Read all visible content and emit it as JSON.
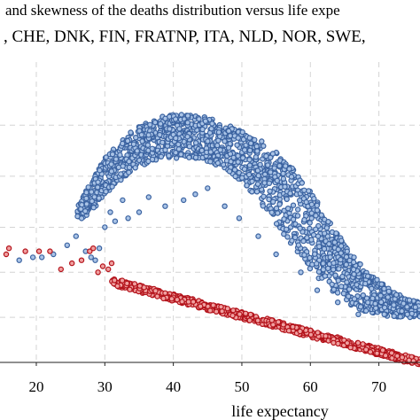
{
  "chart_data": {
    "type": "scatter",
    "title_lines": [
      "and skewness of the deaths distribution versus life expe",
      ", CHE, DNK, FIN, FRATNP, ITA, NLD, NOR, SWE,"
    ],
    "xlabel": "life expectancy",
    "ylabel": "",
    "xlim": [
      14.7,
      76
    ],
    "ylim": [
      0,
      1
    ],
    "x_ticks": [
      20,
      30,
      40,
      50,
      60,
      70
    ],
    "x_tick_labels": [
      "20",
      "30",
      "40",
      "50",
      "60",
      "70"
    ],
    "y_gridlines": [
      0.15,
      0.3,
      0.45,
      0.62,
      0.79
    ],
    "grid": true,
    "grid_style": "dashed",
    "series": [
      {
        "color": "#3a62a0",
        "stroke": "#3a62a0",
        "fill": "#a9c3e6",
        "envelope": [
          [
            26,
            0.47,
            0.52
          ],
          [
            28,
            0.5,
            0.6
          ],
          [
            30,
            0.56,
            0.68
          ],
          [
            32,
            0.6,
            0.73
          ],
          [
            34,
            0.64,
            0.77
          ],
          [
            36,
            0.66,
            0.8
          ],
          [
            38,
            0.68,
            0.82
          ],
          [
            40,
            0.68,
            0.83
          ],
          [
            42,
            0.68,
            0.83
          ],
          [
            44,
            0.68,
            0.82
          ],
          [
            46,
            0.66,
            0.81
          ],
          [
            48,
            0.64,
            0.79
          ],
          [
            50,
            0.6,
            0.77
          ],
          [
            52,
            0.55,
            0.75
          ],
          [
            54,
            0.49,
            0.72
          ],
          [
            56,
            0.43,
            0.68
          ],
          [
            58,
            0.37,
            0.63
          ],
          [
            60,
            0.31,
            0.57
          ],
          [
            62,
            0.26,
            0.5
          ],
          [
            64,
            0.22,
            0.43
          ],
          [
            66,
            0.19,
            0.36
          ],
          [
            68,
            0.17,
            0.31
          ],
          [
            70,
            0.16,
            0.27
          ],
          [
            72,
            0.15,
            0.24
          ],
          [
            74,
            0.15,
            0.21
          ],
          [
            76,
            0.15,
            0.2
          ]
        ],
        "outliers": [
          [
            17.5,
            0.34
          ],
          [
            19.5,
            0.35
          ],
          [
            20.8,
            0.35
          ],
          [
            22.5,
            0.36
          ],
          [
            24.5,
            0.39
          ],
          [
            25.8,
            0.42
          ],
          [
            27.2,
            0.37
          ],
          [
            28,
            0.35
          ],
          [
            28.6,
            0.34
          ],
          [
            29.2,
            0.38
          ],
          [
            30,
            0.45
          ],
          [
            30.8,
            0.5
          ],
          [
            31.5,
            0.47
          ],
          [
            32.6,
            0.54
          ],
          [
            33.4,
            0.48
          ],
          [
            35,
            0.5
          ],
          [
            36.4,
            0.55
          ],
          [
            38.8,
            0.52
          ],
          [
            41.5,
            0.54
          ],
          [
            43.2,
            0.56
          ],
          [
            45,
            0.58
          ],
          [
            47.5,
            0.52
          ],
          [
            49.6,
            0.48
          ],
          [
            52.4,
            0.42
          ],
          [
            55,
            0.36
          ],
          [
            58.6,
            0.3
          ],
          [
            61,
            0.24
          ],
          [
            64,
            0.2
          ],
          [
            67,
            0.16
          ]
        ]
      },
      {
        "color": "#c0161c",
        "stroke": "#b3121a",
        "fill": "#f0a0a0",
        "trend": [
          [
            16,
            0.36
          ],
          [
            76,
            0.0
          ]
        ],
        "spread": 0.012,
        "outliers": [
          [
            15.6,
            0.36
          ],
          [
            16,
            0.38
          ],
          [
            18.4,
            0.37
          ],
          [
            20.4,
            0.37
          ],
          [
            22,
            0.37
          ],
          [
            23.6,
            0.31
          ],
          [
            25.2,
            0.33
          ],
          [
            26.6,
            0.34
          ],
          [
            27.8,
            0.37
          ],
          [
            28.3,
            0.38
          ],
          [
            29,
            0.3
          ],
          [
            29.7,
            0.32
          ],
          [
            30.5,
            0.31
          ],
          [
            31,
            0.33
          ]
        ]
      }
    ]
  }
}
